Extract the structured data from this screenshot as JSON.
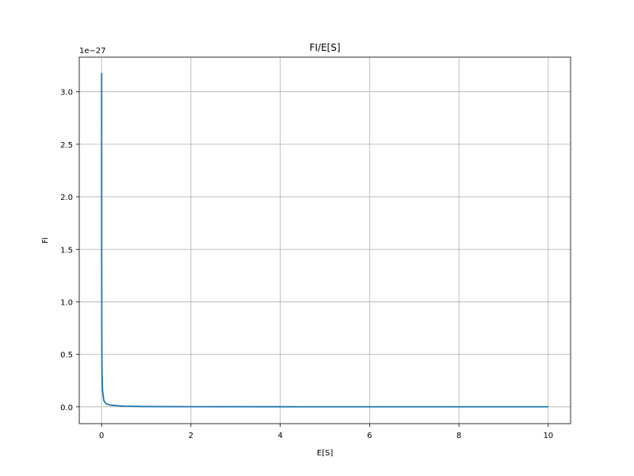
{
  "chart_data": {
    "type": "line",
    "title": "FI/E[S]",
    "xlabel": "E[S]",
    "ylabel": "Fi",
    "y_offset_text": "1e−27",
    "xlim": [
      -0.5,
      10.5
    ],
    "ylim": [
      -0.16,
      3.33
    ],
    "x_ticks": [
      0,
      2,
      4,
      6,
      8,
      10
    ],
    "x_tick_labels": [
      "0",
      "2",
      "4",
      "6",
      "8",
      "10"
    ],
    "y_ticks": [
      0.0,
      0.5,
      1.0,
      1.5,
      2.0,
      2.5,
      3.0
    ],
    "y_tick_labels": [
      "0.0",
      "0.5",
      "1.0",
      "1.5",
      "2.0",
      "2.5",
      "3.0"
    ],
    "grid": true,
    "series": [
      {
        "color": "#1f77b4",
        "x": [
          0.001,
          0.002,
          0.005,
          0.01,
          0.02,
          0.05,
          0.1,
          0.2,
          0.5,
          1,
          2,
          4,
          6,
          8,
          10
        ],
        "y": [
          3.18,
          1.59,
          0.64,
          0.32,
          0.16,
          0.06,
          0.03,
          0.016,
          0.006,
          0.003,
          0.0016,
          0.0008,
          0.0005,
          0.0004,
          0.0003
        ]
      }
    ]
  }
}
